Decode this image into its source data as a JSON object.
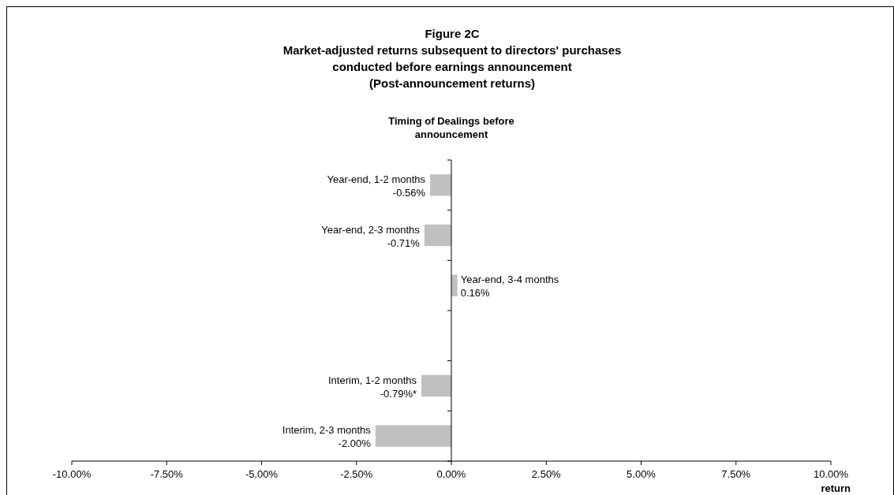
{
  "chart_data": {
    "type": "bar",
    "orientation": "horizontal",
    "title": "Figure 2C",
    "subtitle": "Market-adjusted returns subsequent to directors' purchases\nconducted before earnings announcement\n(Post-announcement returns)",
    "ylabel": "Timing of Dealings before\nannouncement",
    "xlabel": "return",
    "categories": [
      "Year-end, 1-2 months",
      "Year-end, 2-3 months",
      "Year-end, 3-4 months",
      null,
      "Interim, 1-2 months",
      "Interim, 2-3 months"
    ],
    "values": [
      -0.56,
      -0.71,
      0.16,
      null,
      -0.79,
      -2.0
    ],
    "value_labels": [
      "-0.56%",
      "-0.71%",
      "0.16%",
      null,
      "-0.79%*",
      "-2.00%"
    ],
    "color": "#c0c0c0",
    "xlim": [
      -10,
      10
    ],
    "xticks": [
      {
        "value": -10,
        "label": "-10.00%"
      },
      {
        "value": -7.5,
        "label": "-7.50%"
      },
      {
        "value": -5,
        "label": "-5.00%"
      },
      {
        "value": -2.5,
        "label": "-2.50%"
      },
      {
        "value": 0,
        "label": "0.00%"
      },
      {
        "value": 2.5,
        "label": "2.50%"
      },
      {
        "value": 5,
        "label": "5.00%"
      },
      {
        "value": 7.5,
        "label": "7.50%"
      },
      {
        "value": 10,
        "label": "10.00%"
      }
    ],
    "grid": false
  }
}
